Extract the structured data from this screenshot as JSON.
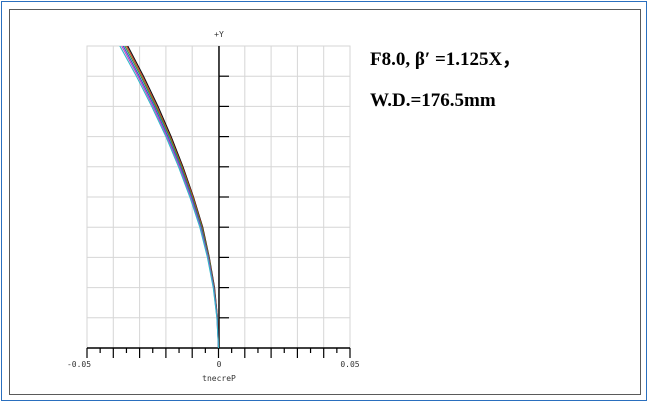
{
  "caption": {
    "line1": "F8.0, β′ =1.125X，",
    "line2": "W.D.=176.5mm"
  },
  "chart_data": {
    "type": "line",
    "title": "",
    "y_axis_label": "+Y",
    "xlabel": "Percent",
    "xlabel_rendered": "tnecreP",
    "xlim": [
      -0.05,
      0.05
    ],
    "ylim": [
      0,
      1
    ],
    "x_ticks": [
      "-0.05",
      "0",
      "0.05"
    ],
    "x_ticks_rendered": [
      "-0.05",
      "0",
      "0.05"
    ],
    "grid": true,
    "series": [
      {
        "color": "#111111",
        "x": [
          0,
          -0.0004,
          -0.0015,
          -0.0035,
          -0.006,
          -0.0095,
          -0.0135,
          -0.018,
          -0.023,
          -0.0285,
          -0.0345,
          -0.0385
        ],
        "y": [
          0,
          0.1,
          0.2,
          0.3,
          0.4,
          0.5,
          0.6,
          0.7,
          0.8,
          0.9,
          1.0,
          1.06
        ]
      },
      {
        "color": "#d03a20",
        "x": [
          0,
          -0.0004,
          -0.0016,
          -0.0036,
          -0.0062,
          -0.0097,
          -0.0138,
          -0.0184,
          -0.0235,
          -0.029,
          -0.035,
          -0.039
        ],
        "y": [
          0,
          0.1,
          0.2,
          0.3,
          0.4,
          0.5,
          0.6,
          0.7,
          0.8,
          0.9,
          1.0,
          1.06
        ]
      },
      {
        "color": "#2a9a3a",
        "x": [
          0,
          -0.0005,
          -0.0017,
          -0.0037,
          -0.0064,
          -0.01,
          -0.0141,
          -0.0187,
          -0.0239,
          -0.0295,
          -0.0356,
          -0.0396
        ],
        "y": [
          0,
          0.1,
          0.2,
          0.3,
          0.4,
          0.5,
          0.6,
          0.7,
          0.8,
          0.9,
          1.0,
          1.06
        ]
      },
      {
        "color": "#2f4fd0",
        "x": [
          0,
          -0.0005,
          -0.0018,
          -0.0039,
          -0.0067,
          -0.0103,
          -0.0145,
          -0.0192,
          -0.0244,
          -0.0301,
          -0.0362,
          -0.0403
        ],
        "y": [
          0,
          0.1,
          0.2,
          0.3,
          0.4,
          0.5,
          0.6,
          0.7,
          0.8,
          0.9,
          1.0,
          1.06
        ]
      },
      {
        "color": "#c040c0",
        "x": [
          0,
          -0.0006,
          -0.0019,
          -0.004,
          -0.0069,
          -0.0106,
          -0.0148,
          -0.0196,
          -0.0249,
          -0.0306,
          -0.0368,
          -0.041
        ],
        "y": [
          0,
          0.1,
          0.2,
          0.3,
          0.4,
          0.5,
          0.6,
          0.7,
          0.8,
          0.9,
          1.0,
          1.06
        ]
      },
      {
        "color": "#30b8c8",
        "x": [
          0,
          -0.0006,
          -0.002,
          -0.0042,
          -0.0071,
          -0.0109,
          -0.0152,
          -0.02,
          -0.0254,
          -0.0312,
          -0.0375,
          -0.0418
        ],
        "y": [
          0,
          0.1,
          0.2,
          0.3,
          0.4,
          0.5,
          0.6,
          0.7,
          0.8,
          0.9,
          1.0,
          1.06
        ]
      }
    ]
  }
}
